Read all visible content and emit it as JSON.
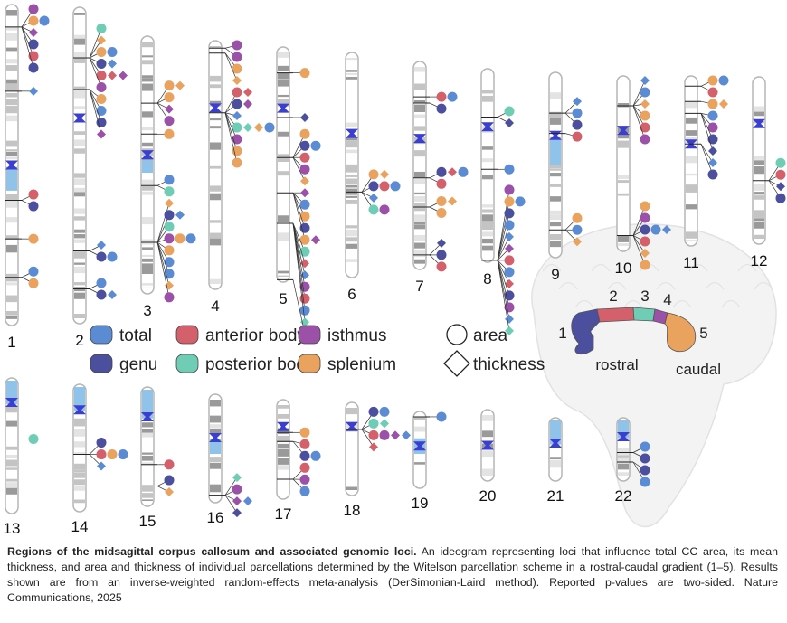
{
  "colors": {
    "total": "#5b8bd2",
    "genu": "#4b4f9e",
    "anterior_body": "#d3606a",
    "posterior_body": "#6fcdb5",
    "isthmus": "#9b51a8",
    "splenium": "#eaa25f",
    "centromere": "#3b3fd0",
    "heterochromatin": "#8fc3ea"
  },
  "legend": {
    "regions": [
      {
        "key": "T",
        "label": "total",
        "color": "#5b8bd2"
      },
      {
        "key": "A",
        "label": "anterior body",
        "color": "#d3606a"
      },
      {
        "key": "I",
        "label": "isthmus",
        "color": "#9b51a8"
      },
      {
        "key": "G",
        "label": "genu",
        "color": "#4b4f9e"
      },
      {
        "key": "P",
        "label": "posterior body",
        "color": "#6fcdb5"
      },
      {
        "key": "S",
        "label": "splenium",
        "color": "#eaa25f"
      }
    ],
    "shapes": [
      {
        "key": "c",
        "label": "area",
        "shape": "circle"
      },
      {
        "key": "d",
        "label": "thickness",
        "shape": "diamond"
      }
    ]
  },
  "brain": {
    "segments": [
      "1",
      "2",
      "3",
      "4",
      "5"
    ],
    "rostral_label": "rostral",
    "caudal_label": "caudal"
  },
  "chromosomes": [
    {
      "label": "1",
      "loci": [
        [
          "Ic",
          "Sc Tc",
          "Id",
          "Gc",
          "Ac",
          "Gc"
        ],
        [
          "Td"
        ],
        [
          "Ac",
          "Gc"
        ],
        [
          "Sc"
        ],
        [
          "Tc",
          "Sc"
        ]
      ]
    },
    {
      "label": "2",
      "loci": [
        [
          "Pc",
          "Sd",
          "Sc Tc",
          "Gc Td",
          "Ac Ad Id",
          "Ic"
        ],
        [
          "Sc",
          "Tc",
          "Gc",
          "Id"
        ],
        [
          "Td",
          "Gc Tc"
        ],
        [
          "Tc",
          "Gc Td"
        ]
      ]
    },
    {
      "label": "3",
      "loci": [
        [
          "Sc Sd",
          "Sc",
          "Id",
          "Ic"
        ],
        [
          "Sc"
        ],
        [
          "Tc",
          "Pc"
        ],
        [
          "Sd",
          "Gc Td",
          "Pc",
          "Ic Sc Tc",
          "Sc",
          "Tc",
          "Tc",
          "Sd",
          "Ic"
        ]
      ]
    },
    {
      "label": "4",
      "loci": [
        [
          "Ic",
          "Ic"
        ],
        [
          "Sc",
          "Sd"
        ],
        [
          "Ac Ad",
          "Gc Id",
          "Td",
          "Pc Pd Sd Tc",
          "Ic",
          "Sc",
          "Sc"
        ]
      ]
    },
    {
      "label": "5",
      "loci": [
        [
          "Sc"
        ],
        [
          "Gd"
        ],
        [
          "Sc",
          "Gc Tc",
          "Ac",
          "Ic",
          "Sd"
        ],
        [
          "Id",
          "Tc",
          "Sc",
          "Gc",
          "Sc Id"
        ],
        [
          "Pc",
          "Ad",
          "Td",
          "Ic",
          "Ac",
          "Tc",
          "Pd"
        ],
        [
          "Td"
        ]
      ]
    },
    {
      "label": "6",
      "loci": [
        [
          "Sc Sd",
          "Gc Ac Tc",
          "Td",
          "Pc Ic"
        ]
      ]
    },
    {
      "label": "7",
      "loci": [
        [
          "Ac Tc"
        ],
        [
          "Gc"
        ],
        [
          "Gc Ad Tc",
          "Ac"
        ],
        [
          "Sc Sd",
          "Sc"
        ],
        [
          "Gd",
          "Gc",
          "Ac"
        ]
      ]
    },
    {
      "label": "8",
      "loci": [
        [
          "Pc",
          "Gd"
        ],
        [
          "Tc"
        ],
        [
          "Ic",
          "Sc Tc",
          "Gc",
          "Tc",
          "Td",
          "Id",
          "Ac",
          "Tc",
          "Ad",
          "Gc",
          "Ic",
          "Td",
          "Pd"
        ]
      ]
    },
    {
      "label": "9",
      "loci": [
        [
          "Td",
          "Tc",
          "Gc"
        ],
        [
          "Ac"
        ],
        [
          "Sc",
          "Tc",
          "Sd"
        ]
      ]
    },
    {
      "label": "10",
      "loci": [
        [
          "Td",
          "Tc",
          "Sd",
          "Sc",
          "Ac",
          "Ic"
        ],
        [
          "Sc",
          "Ic",
          "Gc Tc Td",
          "Ac",
          "Sd",
          "Sc"
        ]
      ]
    },
    {
      "label": "11",
      "loci": [
        [
          "Sc Tc",
          "Ac"
        ],
        [
          "Sc Sd"
        ],
        [
          "Tc",
          "Ic",
          "Gc",
          "Gd"
        ],
        [
          "Td",
          "Gc"
        ]
      ]
    },
    {
      "label": "12",
      "loci": [
        [
          "Pc",
          "Ac",
          "Gd",
          "Gc"
        ]
      ]
    },
    {
      "label": "13",
      "loci": [
        [
          "Pc"
        ]
      ]
    },
    {
      "label": "14",
      "loci": [
        [
          "Gc",
          "Ac Sc Tc",
          "Td"
        ]
      ]
    },
    {
      "label": "15",
      "loci": [
        [
          "Ac"
        ],
        [
          "Gc",
          "Sd"
        ]
      ]
    },
    {
      "label": "16",
      "loci": [
        [
          "Pd",
          "Ic",
          "Id Td",
          "Gd"
        ]
      ]
    },
    {
      "label": "17",
      "loci": [
        [
          "Sc"
        ],
        [
          "Ac",
          "Gc Tc"
        ],
        [
          "Ac",
          "Ic",
          "Tc"
        ]
      ]
    },
    {
      "label": "18",
      "loci": [
        [
          "Gc Tc",
          "Pc Pd",
          "Ac Ic Id Td",
          "Ad"
        ]
      ]
    },
    {
      "label": "19",
      "loci": [
        [
          "Tc"
        ]
      ]
    },
    {
      "label": "20",
      "loci": []
    },
    {
      "label": "21",
      "loci": []
    },
    {
      "label": "22",
      "loci": [
        [
          "Tc",
          "Gc"
        ],
        [
          "Gc",
          "Tc"
        ]
      ]
    }
  ],
  "caption": {
    "title": "Regions of the midsagittal corpus callosum and associated genomic loci.",
    "body": " An ideogram representing loci that influence total CC area, its mean thickness, and area and thickness of individual parcellations determined by the Witelson parcellation scheme in a rostral-caudal gradient (1–5). Results shown are from an inverse-weighted random-effects meta-analysis (DerSimonian-Laird method). Reported p-values are two-sided. Nature Communications, 2025"
  }
}
